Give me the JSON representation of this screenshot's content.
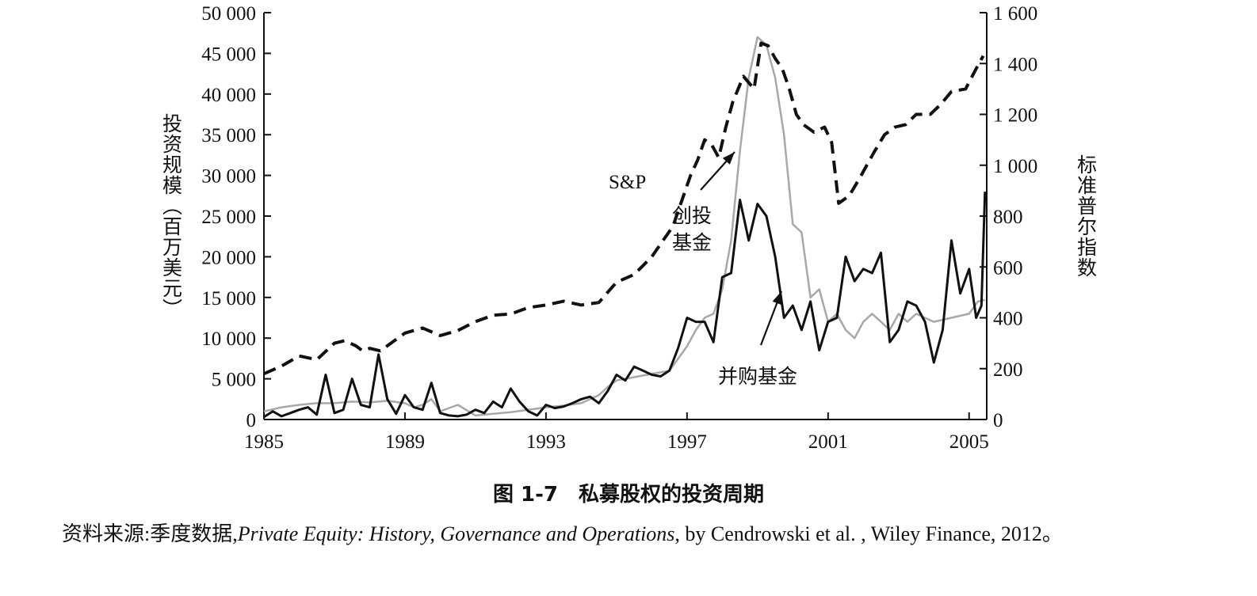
{
  "figure": {
    "caption": "图 1-7　私募股权的投资周期",
    "source_prefix": "资料来源:季度数据,",
    "source_title_italic": "Private Equity: History, Governance and Operations",
    "source_suffix": ", by Cendrowski et al. , Wiley Finance, 2012。"
  },
  "chart_data": {
    "type": "line",
    "title": "",
    "xlabel": "",
    "ylabel": "投资规模（百万美元）",
    "y2label": "标准普尔指数",
    "xlim": [
      1985,
      2005.5
    ],
    "ylim": [
      0,
      50000
    ],
    "y2lim": [
      0,
      1600
    ],
    "x_ticks": [
      1985,
      1989,
      1993,
      1997,
      2001,
      2005
    ],
    "x_tick_labels": [
      "1985",
      "1989",
      "1993",
      "1997",
      "2001",
      "2005"
    ],
    "y_ticks": [
      0,
      5000,
      10000,
      15000,
      20000,
      25000,
      30000,
      35000,
      40000,
      45000,
      50000
    ],
    "y_tick_labels": [
      "0",
      "5 000",
      "10 000",
      "15 000",
      "20 000",
      "25 000",
      "30 000",
      "35 000",
      "40 000",
      "45 000",
      "50 000"
    ],
    "y2_ticks": [
      0,
      200,
      400,
      600,
      800,
      1000,
      1200,
      1400,
      1600
    ],
    "y2_tick_labels": [
      "0",
      "200",
      "400",
      "600",
      "800",
      "1 000",
      "1 200",
      "1 400",
      "1 600"
    ],
    "grid": false,
    "annotations": {
      "sp_label": "S&P",
      "vc_label_line1": "创投",
      "vc_label_line2": "基金",
      "buyout_label": "并购基金"
    },
    "series": [
      {
        "key": "sp",
        "name": "S&P",
        "axis": "right",
        "style": "dashed",
        "color": "#111111",
        "x": [
          1985,
          1985.5,
          1986,
          1986.5,
          1987,
          1987.3,
          1987.6,
          1987.8,
          1988,
          1988.3,
          1988.6,
          1989,
          1989.5,
          1990,
          1990.5,
          1991,
          1991.5,
          1992,
          1992.5,
          1993,
          1993.5,
          1994,
          1994.5,
          1995,
          1995.5,
          1996,
          1996.3,
          1996.6,
          1996.9,
          1997.1,
          1997.3,
          1997.5,
          1997.7,
          1997.9,
          1998.1,
          1998.3,
          1998.6,
          1998.9,
          1999.1,
          1999.3,
          1999.5,
          1999.7,
          1999.9,
          2000.1,
          2000.3,
          2000.6,
          2000.9,
          2001.1,
          2001.3,
          2001.6,
          2001.9,
          2002.3,
          2002.6,
          2002.9,
          2003.2,
          2003.5,
          2003.9,
          2004.2,
          2004.5,
          2004.9,
          2005.2,
          2005.4
        ],
        "values": [
          180,
          210,
          250,
          235,
          300,
          310,
          290,
          270,
          280,
          270,
          300,
          340,
          360,
          330,
          350,
          385,
          410,
          415,
          440,
          450,
          465,
          450,
          460,
          540,
          570,
          640,
          700,
          760,
          880,
          960,
          1020,
          1100,
          1080,
          1030,
          1150,
          1250,
          1350,
          1300,
          1480,
          1470,
          1420,
          1380,
          1300,
          1200,
          1160,
          1130,
          1150,
          1090,
          850,
          880,
          950,
          1050,
          1120,
          1150,
          1160,
          1200,
          1200,
          1240,
          1290,
          1300,
          1380,
          1430
        ]
      },
      {
        "key": "vc",
        "name": "创投基金",
        "axis": "left",
        "style": "solid",
        "color": "#a8a8a8",
        "x": [
          1985,
          1985.5,
          1986,
          1986.5,
          1987,
          1987.5,
          1988,
          1988.5,
          1989,
          1989.25,
          1989.5,
          1989.75,
          1990,
          1990.5,
          1991,
          1991.5,
          1992,
          1992.5,
          1993,
          1993.5,
          1994,
          1994.25,
          1994.5,
          1994.75,
          1995,
          1995.5,
          1996,
          1996.5,
          1997,
          1997.25,
          1997.5,
          1997.75,
          1998,
          1998.25,
          1998.5,
          1998.75,
          1999,
          1999.25,
          1999.5,
          1999.75,
          2000,
          2000.25,
          2000.5,
          2000.75,
          2001,
          2001.25,
          2001.5,
          2001.75,
          2002,
          2002.25,
          2002.5,
          2002.75,
          2003,
          2003.25,
          2003.5,
          2003.75,
          2004,
          2004.5,
          2005,
          2005.25,
          2005.45
        ],
        "values": [
          1000,
          1500,
          1800,
          2000,
          2000,
          2200,
          2100,
          2300,
          2000,
          1500,
          1800,
          2500,
          1000,
          1800,
          500,
          700,
          900,
          1200,
          1500,
          1700,
          2000,
          2500,
          3000,
          4000,
          4800,
          5200,
          5600,
          6000,
          9000,
          11000,
          12500,
          13000,
          16000,
          22000,
          33000,
          42000,
          47000,
          46000,
          42000,
          35000,
          24000,
          23000,
          15000,
          16000,
          12000,
          13000,
          11000,
          10000,
          12000,
          13000,
          12000,
          11000,
          13000,
          12000,
          13000,
          12500,
          12000,
          12500,
          13000,
          14500,
          14700
        ]
      },
      {
        "key": "buyout",
        "name": "并购基金",
        "axis": "left",
        "style": "solid",
        "color": "#111111",
        "x": [
          1985,
          1985.25,
          1985.5,
          1985.75,
          1986,
          1986.25,
          1986.5,
          1986.75,
          1987,
          1987.25,
          1987.5,
          1987.75,
          1988,
          1988.25,
          1988.5,
          1988.75,
          1989,
          1989.25,
          1989.5,
          1989.75,
          1990,
          1990.25,
          1990.5,
          1990.75,
          1991,
          1991.25,
          1991.5,
          1991.75,
          1992,
          1992.25,
          1992.5,
          1992.75,
          1993,
          1993.25,
          1993.5,
          1993.75,
          1994,
          1994.25,
          1994.5,
          1994.75,
          1995,
          1995.25,
          1995.5,
          1995.75,
          1996,
          1996.25,
          1996.5,
          1996.75,
          1997,
          1997.25,
          1997.5,
          1997.75,
          1998,
          1998.25,
          1998.5,
          1998.75,
          1999,
          1999.25,
          1999.5,
          1999.75,
          2000,
          2000.25,
          2000.5,
          2000.75,
          2001,
          2001.25,
          2001.5,
          2001.75,
          2002,
          2002.25,
          2002.5,
          2002.75,
          2003,
          2003.25,
          2003.5,
          2003.75,
          2004,
          2004.25,
          2004.5,
          2004.75,
          2005,
          2005.2,
          2005.35,
          2005.45
        ],
        "values": [
          300,
          1000,
          400,
          800,
          1200,
          1500,
          600,
          5500,
          800,
          1200,
          5000,
          1800,
          1500,
          8000,
          2500,
          700,
          3000,
          1500,
          1200,
          4500,
          800,
          500,
          400,
          600,
          1200,
          800,
          2200,
          1500,
          3800,
          2200,
          1000,
          500,
          1800,
          1400,
          1600,
          2000,
          2500,
          2800,
          2000,
          3500,
          5500,
          4800,
          6500,
          6000,
          5500,
          5300,
          6000,
          8800,
          12500,
          12000,
          12000,
          9500,
          17500,
          18000,
          27000,
          22000,
          26500,
          25000,
          20000,
          12500,
          14000,
          11000,
          14500,
          8500,
          12000,
          12500,
          20000,
          17000,
          18500,
          18000,
          20500,
          9500,
          11000,
          14500,
          14000,
          12000,
          7000,
          11000,
          22000,
          15500,
          18500,
          12500,
          14000,
          28000
        ]
      }
    ]
  }
}
